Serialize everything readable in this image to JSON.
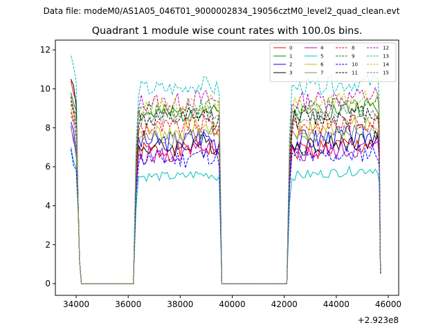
{
  "chart_data": {
    "type": "line",
    "suptitle": "Data file: modeM0/AS1A05_046T01_9000002834_19056cztM0_level2_quad_clean.evt",
    "title": "Quadrant 1 module wise count rates with 100.0s bins.",
    "xlabel": "",
    "ylabel": "",
    "x_offset_label": "+2.923e8",
    "xlim": [
      33200,
      46400
    ],
    "ylim": [
      -0.6,
      12.5
    ],
    "x_ticks": [
      34000,
      36000,
      38000,
      40000,
      42000,
      44000,
      46000
    ],
    "x_tick_labels": [
      "34000",
      "36000",
      "38000",
      "40000",
      "42000",
      "44000",
      "46000"
    ],
    "y_ticks": [
      0,
      2,
      4,
      6,
      8,
      10,
      12
    ],
    "y_tick_labels": [
      "0",
      "2",
      "4",
      "6",
      "8",
      "10",
      "12"
    ],
    "legend_position": "top-right",
    "bin_seconds": 100,
    "segments": [
      {
        "start": 33800,
        "end": 34200
      },
      {
        "start": 36200,
        "end": 39600
      },
      {
        "start": 42100,
        "end": 45700
      }
    ],
    "series": [
      {
        "name": "0",
        "color": "#ff0000",
        "style": "solid",
        "level": 6.8,
        "spread": 0.55,
        "start": 10.4,
        "seed": 1
      },
      {
        "name": "1",
        "color": "#008000",
        "style": "solid",
        "level": 8.7,
        "spread": 0.5,
        "start": 9.8,
        "seed": 2
      },
      {
        "name": "2",
        "color": "#0000ff",
        "style": "solid",
        "level": 7.3,
        "spread": 0.6,
        "start": 8.3,
        "seed": 3
      },
      {
        "name": "3",
        "color": "#000000",
        "style": "solid",
        "level": 7.0,
        "spread": 0.5,
        "start": 10.5,
        "seed": 4
      },
      {
        "name": "4",
        "color": "#bf00bf",
        "style": "solid",
        "level": 6.6,
        "spread": 0.5,
        "start": 8.1,
        "seed": 5
      },
      {
        "name": "5",
        "color": "#00bfbf",
        "style": "solid",
        "level": 5.5,
        "spread": 0.25,
        "start": 7.0,
        "seed": 6
      },
      {
        "name": "6",
        "color": "#bfbf00",
        "style": "solid",
        "level": 7.8,
        "spread": 0.5,
        "start": 9.0,
        "seed": 7
      },
      {
        "name": "7",
        "color": "#808080",
        "style": "solid",
        "level": 7.5,
        "spread": 0.45,
        "start": 8.0,
        "seed": 8
      },
      {
        "name": "8",
        "color": "#ff0000",
        "style": "dashed",
        "level": 8.0,
        "spread": 0.5,
        "start": 8.8,
        "seed": 9
      },
      {
        "name": "9",
        "color": "#008000",
        "style": "dashed",
        "level": 8.9,
        "spread": 0.45,
        "start": 9.2,
        "seed": 10
      },
      {
        "name": "10",
        "color": "#0000ff",
        "style": "dashed",
        "level": 6.4,
        "spread": 0.5,
        "start": 6.9,
        "seed": 11
      },
      {
        "name": "11",
        "color": "#000000",
        "style": "dashed",
        "level": 8.4,
        "spread": 0.5,
        "start": 9.6,
        "seed": 12
      },
      {
        "name": "12",
        "color": "#bf00bf",
        "style": "dashed",
        "level": 9.3,
        "spread": 0.5,
        "start": 9.4,
        "seed": 13
      },
      {
        "name": "13",
        "color": "#00bfbf",
        "style": "dashed",
        "level": 10.0,
        "spread": 0.45,
        "start": 11.7,
        "seed": 14
      },
      {
        "name": "14",
        "color": "#bfbf00",
        "style": "dashed",
        "level": 9.1,
        "spread": 0.45,
        "start": 9.5,
        "seed": 15
      },
      {
        "name": "15",
        "color": "#808080",
        "style": "dashed",
        "level": 8.5,
        "spread": 0.45,
        "start": 8.6,
        "seed": 16
      }
    ]
  }
}
